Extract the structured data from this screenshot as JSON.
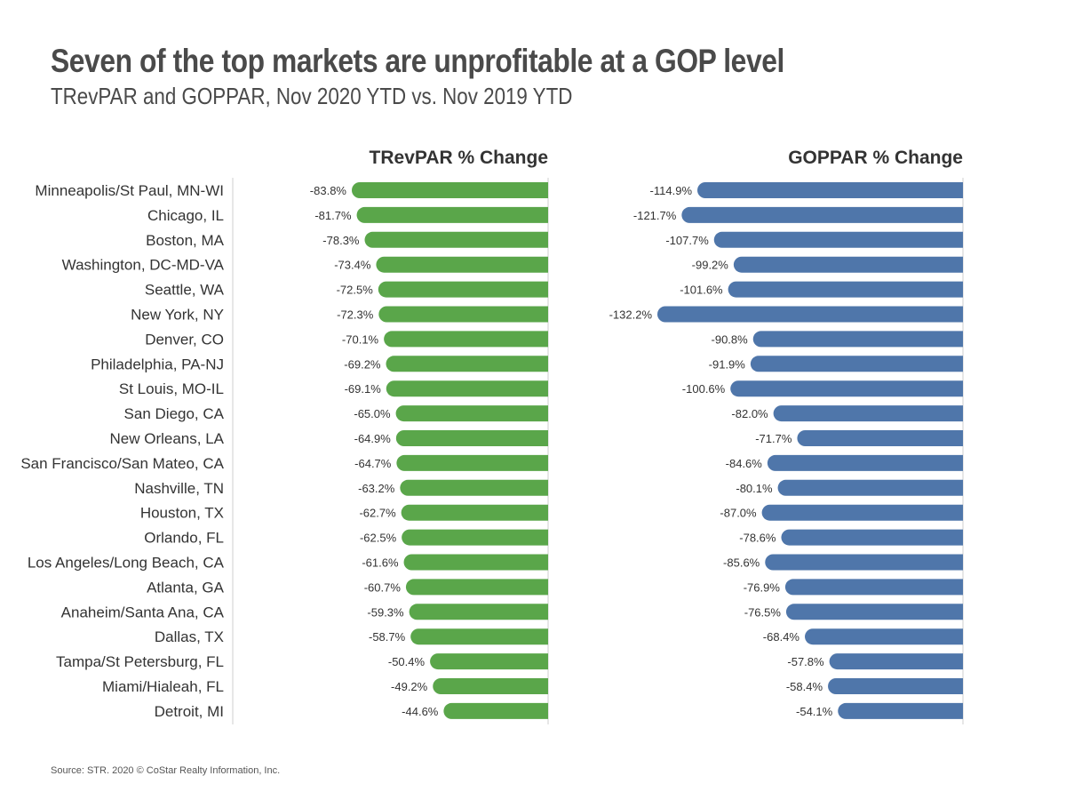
{
  "title": "Seven of the top markets are unprofitable at a GOP level",
  "subtitle": "TRevPAR and GOPPAR, Nov 2020 YTD vs. Nov 2019 YTD",
  "source": "Source: STR. 2020 © CoStar Realty Information, Inc.",
  "colors": {
    "trevpar": "#5aa64a",
    "goppar": "#4f76aa",
    "axis": "#cfcfcf",
    "text": "#333333"
  },
  "chart_data": {
    "type": "bar",
    "orientation": "horizontal",
    "categories": [
      "Minneapolis/St Paul, MN-WI",
      "Chicago, IL",
      "Boston, MA",
      "Washington, DC-MD-VA",
      "Seattle, WA",
      "New York, NY",
      "Denver, CO",
      "Philadelphia, PA-NJ",
      "St Louis, MO-IL",
      "San Diego, CA",
      "New Orleans, LA",
      "San Francisco/San Mateo, CA",
      "Nashville, TN",
      "Houston, TX",
      "Orlando, FL",
      "Los Angeles/Long Beach, CA",
      "Atlanta, GA",
      "Anaheim/Santa Ana, CA",
      "Dallas, TX",
      "Tampa/St Petersburg, FL",
      "Miami/Hialeah, FL",
      "Detroit, MI"
    ],
    "series": [
      {
        "name": "TRevPAR % Change",
        "values": [
          -83.8,
          -81.7,
          -78.3,
          -73.4,
          -72.5,
          -72.3,
          -70.1,
          -69.2,
          -69.1,
          -65.0,
          -64.9,
          -64.7,
          -63.2,
          -62.7,
          -62.5,
          -61.6,
          -60.7,
          -59.3,
          -58.7,
          -50.4,
          -49.2,
          -44.6
        ],
        "labels": [
          "-83.8%",
          "-81.7%",
          "-78.3%",
          "-73.4%",
          "-72.5%",
          "-72.3%",
          "-70.1%",
          "-69.2%",
          "-69.1%",
          "-65.0%",
          "-64.9%",
          "-64.7%",
          "-63.2%",
          "-62.7%",
          "-62.5%",
          "-61.6%",
          "-60.7%",
          "-59.3%",
          "-58.7%",
          "-50.4%",
          "-49.2%",
          "-44.6%"
        ]
      },
      {
        "name": "GOPPAR % Change",
        "values": [
          -114.9,
          -121.7,
          -107.7,
          -99.2,
          -101.6,
          -132.2,
          -90.8,
          -91.9,
          -100.6,
          -82.0,
          -71.7,
          -84.6,
          -80.1,
          -87.0,
          -78.6,
          -85.6,
          -76.9,
          -76.5,
          -68.4,
          -57.8,
          -58.4,
          -54.1
        ],
        "labels": [
          "-114.9%",
          "-121.7%",
          "-107.7%",
          "-99.2%",
          "-101.6%",
          "-132.2%",
          "-90.8%",
          "-91.9%",
          "-100.6%",
          "-82.0%",
          "-71.7%",
          "-84.6%",
          "-80.1%",
          "-87.0%",
          "-78.6%",
          "-85.6%",
          "-76.9%",
          "-76.5%",
          "-68.4%",
          "-57.8%",
          "-58.4%",
          "-54.1%"
        ]
      }
    ],
    "grid": false,
    "legend": "none"
  }
}
